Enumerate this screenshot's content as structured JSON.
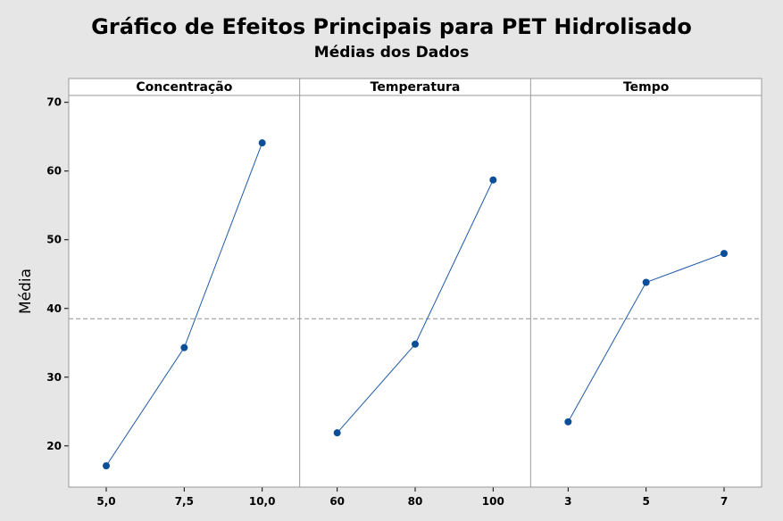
{
  "chart_data": {
    "type": "line",
    "title": "Gráfico de Efeitos Principais para PET Hidrolisado",
    "subtitle": "Médias dos Dados",
    "ylabel": "Média",
    "ylim": [
      14,
      71
    ],
    "yticks": [
      20,
      30,
      40,
      50,
      60,
      70
    ],
    "reference_line": 38.5,
    "grid": false,
    "colors": {
      "line": "#1f5aa6",
      "marker": "#0d4f96",
      "reference": "#909090",
      "background": "#e6e6e6",
      "plot_area": "#ffffff"
    },
    "panels": [
      {
        "name": "Concentração",
        "categories": [
          "5,0",
          "7,5",
          "10,0"
        ],
        "values": [
          17.1,
          34.3,
          64.1
        ]
      },
      {
        "name": "Temperatura",
        "categories": [
          "60",
          "80",
          "100"
        ],
        "values": [
          21.9,
          34.8,
          58.7
        ]
      },
      {
        "name": "Tempo",
        "categories": [
          "3",
          "5",
          "7"
        ],
        "values": [
          23.5,
          43.8,
          48.0
        ]
      }
    ]
  }
}
